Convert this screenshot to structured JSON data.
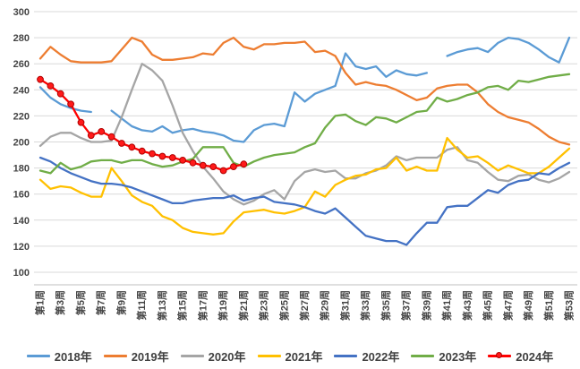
{
  "chart_data": {
    "type": "line",
    "title": "",
    "x_unit": "week",
    "weeks": 53,
    "x_tick_labels": [
      "第1周",
      "第3周",
      "第5周",
      "第7周",
      "第9周",
      "第11周",
      "第13周",
      "第15周",
      "第17周",
      "第19周",
      "第21周",
      "第23周",
      "第25周",
      "第27周",
      "第29周",
      "第31周",
      "第33周",
      "第35周",
      "第37周",
      "第39周",
      "第41周",
      "第43周",
      "第45周",
      "第47周",
      "第49周",
      "第51周",
      "第53周"
    ],
    "ylim": [
      100,
      300
    ],
    "ytick_step": 20,
    "yticks": [
      100,
      120,
      140,
      160,
      180,
      200,
      220,
      240,
      260,
      280,
      300
    ],
    "grid": "horizontal",
    "legend_position": "bottom",
    "gridline_color": "#D9D9D9",
    "axis_line_color": "#BFBFBF",
    "series": [
      {
        "name": "2018年",
        "color": "#5B9BD5",
        "marker": "none",
        "values": [
          242,
          234,
          229,
          226,
          224,
          223,
          null,
          224,
          218,
          212,
          209,
          208,
          212,
          207,
          209,
          210,
          208,
          207,
          205,
          201,
          200,
          209,
          213,
          214,
          212,
          238,
          231,
          237,
          240,
          243,
          268,
          258,
          256,
          258,
          250,
          255,
          252,
          251,
          253,
          null,
          266,
          269,
          271,
          272,
          269,
          276,
          280,
          279,
          276,
          271,
          265,
          261,
          280
        ]
      },
      {
        "name": "2019年",
        "color": "#ED7D31",
        "marker": "none",
        "values": [
          264,
          273,
          267,
          262,
          261,
          261,
          261,
          262,
          271,
          280,
          277,
          267,
          263,
          263,
          264,
          265,
          268,
          267,
          276,
          280,
          273,
          271,
          275,
          275,
          276,
          276,
          277,
          269,
          270,
          266,
          253,
          244,
          246,
          244,
          243,
          240,
          236,
          232,
          234,
          241,
          243,
          244,
          244,
          238,
          229,
          223,
          219,
          217,
          215,
          210,
          204,
          200,
          198
        ]
      },
      {
        "name": "2020年",
        "color": "#A5A5A5",
        "marker": "none",
        "values": [
          197,
          204,
          207,
          207,
          203,
          200,
          200,
          201,
          219,
          240,
          260,
          255,
          247,
          228,
          207,
          193,
          181,
          172,
          162,
          156,
          152,
          155,
          160,
          163,
          156,
          170,
          177,
          179,
          177,
          178,
          172,
          172,
          176,
          178,
          182,
          189,
          186,
          188,
          188,
          188,
          194,
          196,
          186,
          184,
          177,
          171,
          170,
          174,
          175,
          171,
          169,
          172,
          177
        ]
      },
      {
        "name": "2021年",
        "color": "#FFC000",
        "marker": "none",
        "values": [
          171,
          164,
          166,
          165,
          161,
          158,
          158,
          180,
          170,
          159,
          154,
          151,
          143,
          140,
          134,
          131,
          130,
          129,
          130,
          139,
          146,
          147,
          148,
          146,
          145,
          147,
          150,
          162,
          158,
          167,
          171,
          174,
          175,
          179,
          180,
          188,
          178,
          181,
          178,
          178,
          203,
          194,
          188,
          189,
          184,
          178,
          182,
          179,
          176,
          176,
          181,
          188,
          195
        ]
      },
      {
        "name": "2022年",
        "color": "#4472C4",
        "marker": "none",
        "values": [
          188,
          185,
          180,
          176,
          173,
          170,
          168,
          168,
          167,
          165,
          162,
          159,
          156,
          153,
          153,
          155,
          156,
          157,
          157,
          159,
          155,
          157,
          158,
          154,
          153,
          152,
          150,
          147,
          145,
          149,
          142,
          135,
          128,
          126,
          124,
          124,
          121,
          130,
          138,
          138,
          150,
          151,
          151,
          157,
          163,
          161,
          167,
          170,
          171,
          176,
          175,
          180,
          184
        ]
      },
      {
        "name": "2023年",
        "color": "#70AD47",
        "marker": "none",
        "values": [
          178,
          176,
          184,
          179,
          181,
          185,
          186,
          186,
          184,
          186,
          186,
          183,
          181,
          182,
          185,
          187,
          196,
          196,
          196,
          184,
          181,
          185,
          188,
          190,
          191,
          192,
          196,
          199,
          211,
          220,
          221,
          216,
          213,
          219,
          218,
          215,
          219,
          223,
          224,
          234,
          231,
          233,
          236,
          238,
          242,
          243,
          240,
          247,
          246,
          248,
          250,
          251,
          252
        ]
      },
      {
        "name": "2024年",
        "color": "#FF0000",
        "marker": "circle",
        "marker_fill": "#FF1A1A",
        "marker_stroke": "#B00000",
        "values": [
          248,
          243,
          237,
          229,
          215,
          205,
          208,
          204,
          199,
          196,
          193,
          191,
          189,
          188,
          186,
          184,
          182,
          181,
          178,
          181,
          183,
          null,
          null,
          null,
          null,
          null,
          null,
          null,
          null,
          null,
          null,
          null,
          null,
          null,
          null,
          null,
          null,
          null,
          null,
          null,
          null,
          null,
          null,
          null,
          null,
          null,
          null,
          null,
          null,
          null,
          null,
          null,
          null
        ]
      }
    ]
  }
}
